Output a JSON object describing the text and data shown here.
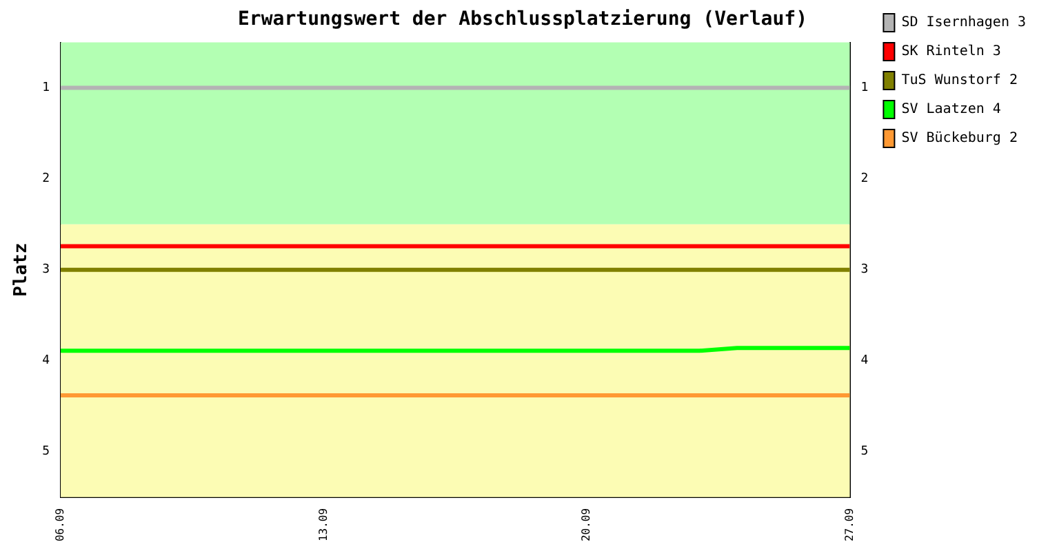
{
  "chart_data": {
    "type": "line",
    "title": "Erwartungswert der Abschlussplatzierung (Verlauf)",
    "ylabel": "Platz",
    "x": [
      "--09-06",
      "--09-27"
    ],
    "series": [
      {
        "name": "SD Isernhagen 3",
        "color": "#b4b4b4",
        "values": [
          1.0,
          1.0
        ]
      },
      {
        "name": "SK Rinteln 3",
        "color": "#ff0000",
        "values": [
          2.74,
          2.74
        ]
      },
      {
        "name": "TuS Wunstorf 2",
        "color": "#808000",
        "values": [
          3.0,
          3.0
        ]
      },
      {
        "name": "SV Laatzen 4",
        "color": "#00ff00",
        "x": [
          "--09-06",
          "--09-23",
          "--09-24",
          "--09-27"
        ],
        "values": [
          3.89,
          3.89,
          3.86,
          3.86
        ]
      },
      {
        "name": "SV Bückeburg 2",
        "color": "#ff9933",
        "values": [
          4.38,
          4.38
        ]
      }
    ],
    "xlim": [
      "--09-06",
      "--09-27"
    ],
    "xticks": [
      {
        "value": "--09-06",
        "label": "06.09"
      },
      {
        "value": "--09-13",
        "label": "13.09"
      },
      {
        "value": "--09-20",
        "label": "20.09"
      },
      {
        "value": "--09-27",
        "label": "27.09"
      }
    ],
    "ylim": [
      5.5,
      0.5
    ],
    "yticks": [
      1,
      2,
      3,
      4,
      5
    ],
    "y2lim": [
      5.5,
      0.5
    ],
    "y2ticks": [
      1,
      2,
      3,
      4,
      5
    ],
    "bands": [
      {
        "axis": "y",
        "from": 0.5,
        "to": 2.5,
        "color": "#b3ffb3"
      },
      {
        "axis": "y",
        "from": 2.5,
        "to": 5.5,
        "color": "#fcfcb4"
      }
    ],
    "grid": false,
    "legend": "right",
    "marker": "none",
    "line_style": "solid"
  }
}
